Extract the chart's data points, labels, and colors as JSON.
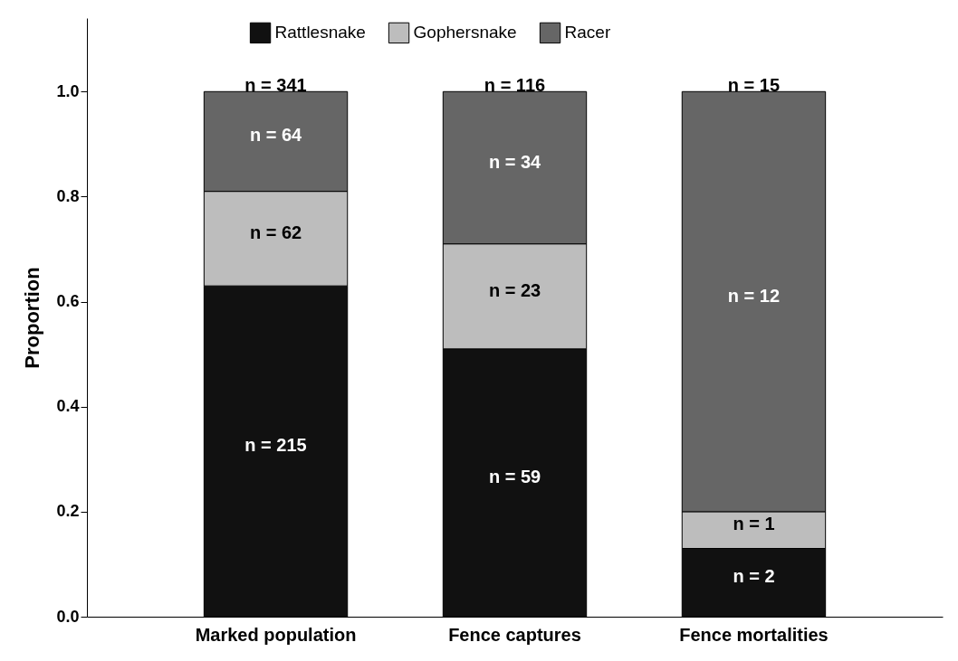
{
  "chart_data": {
    "type": "bar",
    "stacked": true,
    "ylabel": "Proportion",
    "categories": [
      "Marked population",
      "Fence captures",
      "Fence mortalities"
    ],
    "series": [
      {
        "name": "Rattlesnake",
        "color": "#111111",
        "values": [
          0.63,
          0.51,
          0.13
        ]
      },
      {
        "name": "Gophersnake",
        "color": "#bdbdbd",
        "values": [
          0.18,
          0.2,
          0.07
        ]
      },
      {
        "name": "Racer",
        "color": "#666666",
        "values": [
          0.19,
          0.29,
          0.8
        ]
      }
    ],
    "annotations": [
      "n = 215",
      "n = 62",
      "n = 64",
      "n = 341",
      "n = 59",
      "n = 23",
      "n = 34",
      "n = 116",
      "n = 2",
      "n = 1",
      "n = 12",
      "n = 15"
    ],
    "ylim": [
      0,
      1.14
    ],
    "yticks": [
      {
        "value": 0,
        "label": "0.0"
      },
      {
        "value": 0.2,
        "label": "0.2"
      },
      {
        "value": 0.4,
        "label": "0.4"
      },
      {
        "value": 0.6,
        "label": "0.6"
      },
      {
        "value": 0.8,
        "label": "0.8"
      },
      {
        "value": 1,
        "label": "1.0"
      }
    ],
    "grid": false,
    "legend": "top"
  }
}
